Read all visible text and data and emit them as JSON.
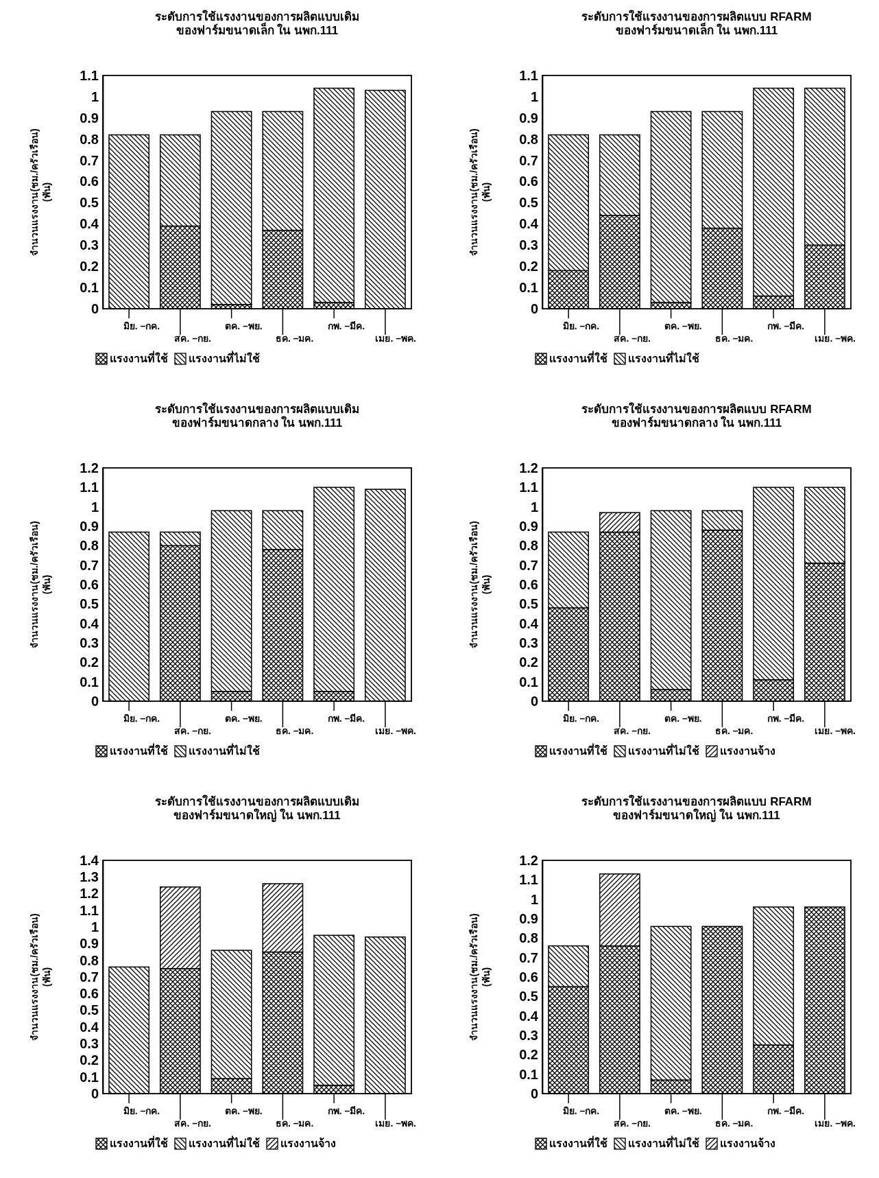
{
  "chart_data": [
    {
      "type": "bar",
      "title": "ระดับการใช้แรงงานของการผลิตแบบเดิม",
      "subtitle": "ของฟาร์มขนาดเล็ก ใน นพก.111",
      "ylabel": "จำนวนแรงงาน(ชม./ครัวเรือน)\n(พัน)",
      "categories": [
        "มิย. –กค.",
        "สค. –กย.",
        "ตค. –พย.",
        "ธค. –มค.",
        "กพ. –มีค.",
        "เมย. –พค."
      ],
      "stacked": true,
      "grid": false,
      "legend": "bottom",
      "ylim": [
        0,
        1.1
      ],
      "yticks": [
        0,
        0.1,
        0.2,
        0.3,
        0.4,
        0.5,
        0.6,
        0.7,
        0.8,
        0.9,
        1,
        1.1
      ],
      "series": [
        {
          "name": "แรงงานที่ใช้",
          "color": "#000000",
          "values": [
            0,
            0.39,
            0.02,
            0.37,
            0.03,
            null
          ]
        },
        {
          "name": "แรงงานที่ไม่ใช้",
          "color": "#000000",
          "values": [
            0.82,
            0.43,
            0.91,
            0.56,
            1.01,
            1.03
          ]
        }
      ]
    },
    {
      "type": "bar",
      "title": "ระดับการใช้แรงงานของการผลิตแบบ RFARM",
      "subtitle": "ของฟาร์มขนาดเล็ก ใน นพก.111",
      "ylabel": "จำนวนแรงงาน(ชม./ครัวเรือน)\n(พัน)",
      "categories": [
        "มิย. –กค.",
        "สค. –กย.",
        "ตค. –พย.",
        "ธค. –มค.",
        "กพ. –มีค.",
        "เมย. –พค."
      ],
      "stacked": true,
      "grid": false,
      "legend": "bottom",
      "ylim": [
        0,
        1.1
      ],
      "yticks": [
        0,
        0.1,
        0.2,
        0.3,
        0.4,
        0.5,
        0.6,
        0.7,
        0.8,
        0.9,
        1,
        1.1
      ],
      "series": [
        {
          "name": "แรงงานที่ใช้",
          "color": "#000000",
          "values": [
            0.18,
            0.44,
            0.03,
            0.38,
            0.06,
            0.3
          ]
        },
        {
          "name": "แรงงานที่ไม่ใช้",
          "color": "#000000",
          "values": [
            0.64,
            0.38,
            0.9,
            0.55,
            0.98,
            0.74
          ]
        }
      ]
    },
    {
      "type": "bar",
      "title": "ระดับการใช้แรงงานของการผลิตแบบเดิม",
      "subtitle": "ของฟาร์มขนาดกลาง ใน นพก.111",
      "ylabel": "จำนวนแรงงาน(ชม./ครัวเรือน)\n(พัน)",
      "categories": [
        "มิย. –กค.",
        "สค. –กย.",
        "ตค. –พย.",
        "ธค. –มค.",
        "กพ. –มีค.",
        "เมย. –พค."
      ],
      "stacked": true,
      "grid": false,
      "legend": "bottom",
      "ylim": [
        0,
        1.2
      ],
      "yticks": [
        0,
        0.1,
        0.2,
        0.3,
        0.4,
        0.5,
        0.6,
        0.7,
        0.8,
        0.9,
        1,
        1.1,
        1.2
      ],
      "series": [
        {
          "name": "แรงงานที่ใช้",
          "color": "#000000",
          "values": [
            0,
            0.8,
            0.05,
            0.78,
            0.05,
            null
          ]
        },
        {
          "name": "แรงงานที่ไม่ใช้",
          "color": "#000000",
          "values": [
            0.87,
            0.07,
            0.93,
            0.2,
            1.05,
            1.09
          ]
        }
      ]
    },
    {
      "type": "bar",
      "title": "ระดับการใช้แรงงานของการผลิตแบบ RFARM",
      "subtitle": "ของฟาร์มขนาดกลาง ใน นพก.111",
      "ylabel": "จำนวนแรงงาน(ชม./ครัวเรือน)\n(พัน)",
      "categories": [
        "มิย. –กค.",
        "สค. –กย.",
        "ตค. –พย.",
        "ธค. –มค.",
        "กพ. –มีค.",
        "เมย. –พค."
      ],
      "stacked": true,
      "grid": false,
      "legend": "bottom",
      "ylim": [
        0,
        1.2
      ],
      "yticks": [
        0,
        0.1,
        0.2,
        0.3,
        0.4,
        0.5,
        0.6,
        0.7,
        0.8,
        0.9,
        1,
        1.1,
        1.2
      ],
      "series": [
        {
          "name": "แรงงานที่ใช้",
          "color": "#000000",
          "values": [
            0.48,
            0.87,
            0.06,
            0.88,
            0.11,
            0.71
          ]
        },
        {
          "name": "แรงงานที่ไม่ใช้",
          "color": "#000000",
          "values": [
            0.39,
            0,
            0.92,
            0.1,
            0.99,
            0.39
          ]
        },
        {
          "name": "แรงงานจ้าง",
          "color": "#000000",
          "values": [
            0,
            0.1,
            0,
            0,
            0,
            0
          ]
        }
      ]
    },
    {
      "type": "bar",
      "title": "ระดับการใช้แรงงานของการผลิตแบบเดิม",
      "subtitle": "ของฟาร์มขนาดใหญ่ ใน นพก.111",
      "ylabel": "จำนวนแรงงาน(ชม./ครัวเรือน)\n(พัน)",
      "categories": [
        "มิย. –กค.",
        "สค. –กย.",
        "ตค. –พย.",
        "ธค. –มค.",
        "กพ. –มีค.",
        "เมย. –พค."
      ],
      "stacked": true,
      "grid": false,
      "legend": "bottom",
      "ylim": [
        0,
        1.4
      ],
      "yticks": [
        0,
        0.1,
        0.2,
        0.3,
        0.4,
        0.5,
        0.6,
        0.7,
        0.8,
        0.9,
        1,
        1.1,
        1.2,
        1.3,
        1.4
      ],
      "series": [
        {
          "name": "แรงงานที่ใช้",
          "color": "#000000",
          "values": [
            0,
            0.75,
            0.09,
            0.85,
            0.05,
            null
          ]
        },
        {
          "name": "แรงงานที่ไม่ใช้",
          "color": "#000000",
          "values": [
            0.76,
            0,
            0.77,
            0,
            0.9,
            0.94
          ]
        },
        {
          "name": "แรงงานจ้าง",
          "color": "#000000",
          "values": [
            0,
            0.49,
            0,
            0.41,
            0,
            0
          ]
        }
      ]
    },
    {
      "type": "bar",
      "title": "ระดับการใช้แรงงานของการผลิตแบบ RFARM",
      "subtitle": "ของฟาร์มขนาดใหญ่ ใน นพก.111",
      "ylabel": "จำนวนแรงงาน(ชม./ครัวเรือน)\n(พัน)",
      "categories": [
        "มิย. –กค.",
        "สค. –กย.",
        "ตค. –พย.",
        "ธค. –มค.",
        "กพ. –มีค.",
        "เมย. –พค."
      ],
      "stacked": true,
      "grid": false,
      "legend": "bottom",
      "ylim": [
        0,
        1.2
      ],
      "yticks": [
        0,
        0.1,
        0.2,
        0.3,
        0.4,
        0.5,
        0.6,
        0.7,
        0.8,
        0.9,
        1,
        1.1,
        1.2
      ],
      "series": [
        {
          "name": "แรงงานที่ใช้",
          "color": "#000000",
          "values": [
            0.55,
            0.76,
            0.07,
            0.86,
            0.25,
            0.96
          ]
        },
        {
          "name": "แรงงานที่ไม่ใช้",
          "color": "#000000",
          "values": [
            0.21,
            0,
            0.79,
            0,
            0.71,
            0
          ]
        },
        {
          "name": "แรงงานจ้าง",
          "color": "#000000",
          "values": [
            0,
            0.37,
            0,
            0,
            0,
            0
          ]
        }
      ]
    }
  ]
}
